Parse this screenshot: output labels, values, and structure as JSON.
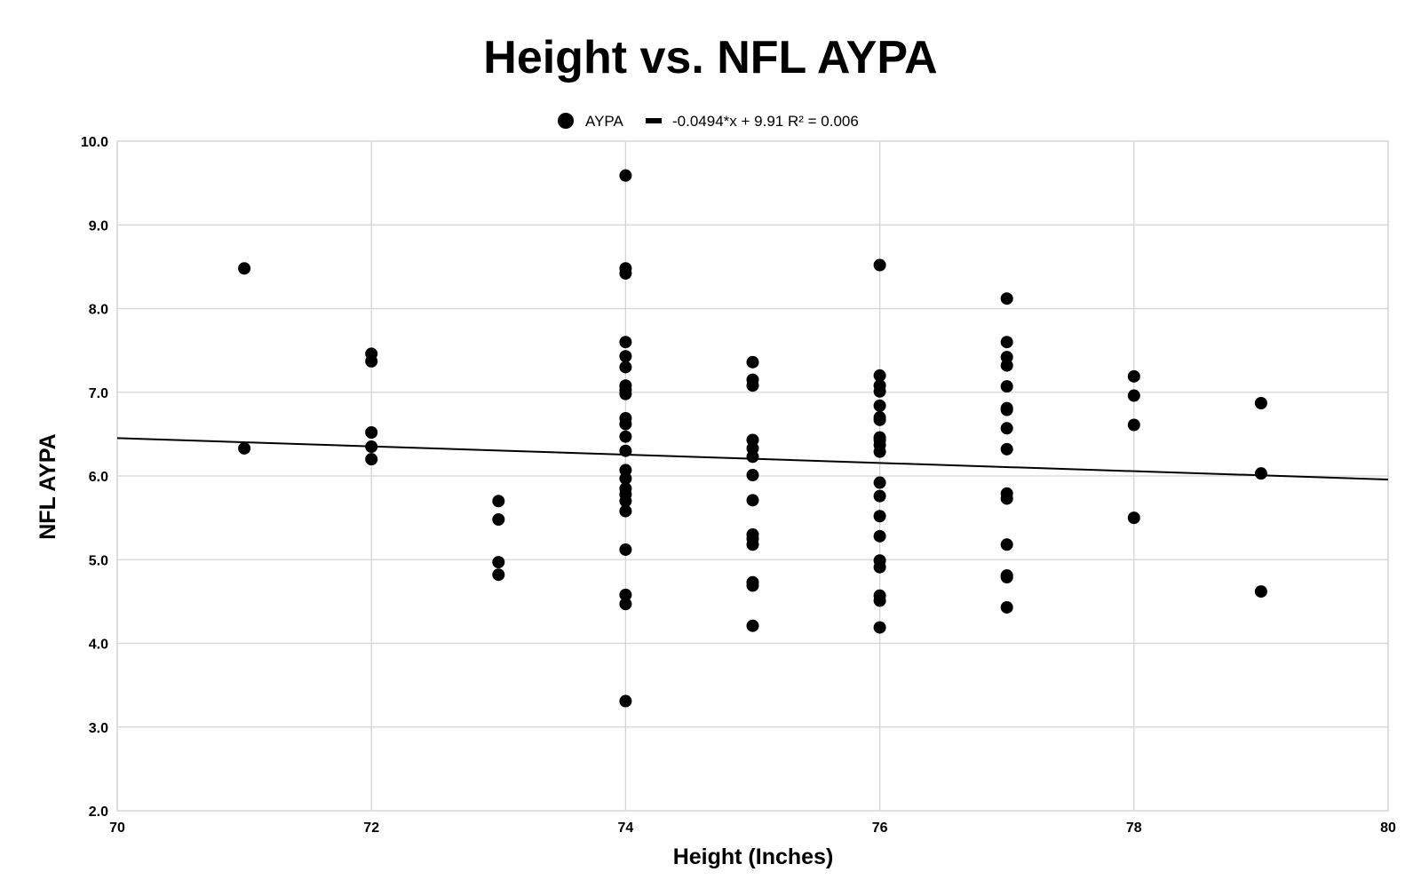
{
  "chart_data": {
    "type": "scatter",
    "title": "Height vs. NFL AYPA",
    "xlabel": "Height (Inches)",
    "ylabel": "NFL AYPA",
    "xlim": [
      70,
      80
    ],
    "ylim": [
      2.0,
      10.0
    ],
    "x_ticks": [
      "70",
      "72",
      "74",
      "76",
      "78",
      "80"
    ],
    "y_ticks": [
      "2.0",
      "3.0",
      "4.0",
      "5.0",
      "6.0",
      "7.0",
      "8.0",
      "9.0",
      "10.0"
    ],
    "grid": true,
    "legend_position": "top-center",
    "colors": {
      "points": "#000000",
      "trendline": "#000000",
      "grid": "#d4d4d4"
    },
    "series": [
      {
        "name": "AYPA",
        "points": [
          [
            71,
            8.48
          ],
          [
            71,
            6.33
          ],
          [
            72,
            7.46
          ],
          [
            72,
            7.37
          ],
          [
            72,
            6.52
          ],
          [
            72,
            6.35
          ],
          [
            72,
            6.2
          ],
          [
            73,
            5.7
          ],
          [
            73,
            5.48
          ],
          [
            73,
            4.97
          ],
          [
            73,
            4.82
          ],
          [
            74,
            9.59
          ],
          [
            74,
            8.48
          ],
          [
            74,
            8.42
          ],
          [
            74,
            7.6
          ],
          [
            74,
            7.43
          ],
          [
            74,
            7.3
          ],
          [
            74,
            7.08
          ],
          [
            74,
            7.03
          ],
          [
            74,
            6.98
          ],
          [
            74,
            6.69
          ],
          [
            74,
            6.62
          ],
          [
            74,
            6.47
          ],
          [
            74,
            6.3
          ],
          [
            74,
            6.07
          ],
          [
            74,
            5.97
          ],
          [
            74,
            5.85
          ],
          [
            74,
            5.78
          ],
          [
            74,
            5.7
          ],
          [
            74,
            5.58
          ],
          [
            74,
            5.12
          ],
          [
            74,
            4.58
          ],
          [
            74,
            4.47
          ],
          [
            74,
            3.31
          ],
          [
            75,
            7.36
          ],
          [
            75,
            7.15
          ],
          [
            75,
            7.08
          ],
          [
            75,
            6.43
          ],
          [
            75,
            6.33
          ],
          [
            75,
            6.23
          ],
          [
            75,
            6.01
          ],
          [
            75,
            5.71
          ],
          [
            75,
            5.3
          ],
          [
            75,
            5.25
          ],
          [
            75,
            5.18
          ],
          [
            75,
            4.73
          ],
          [
            75,
            4.69
          ],
          [
            75,
            4.21
          ],
          [
            76,
            8.52
          ],
          [
            76,
            7.2
          ],
          [
            76,
            7.08
          ],
          [
            76,
            7.01
          ],
          [
            76,
            6.84
          ],
          [
            76,
            6.7
          ],
          [
            76,
            6.67
          ],
          [
            76,
            6.46
          ],
          [
            76,
            6.43
          ],
          [
            76,
            6.37
          ],
          [
            76,
            6.29
          ],
          [
            76,
            5.92
          ],
          [
            76,
            5.76
          ],
          [
            76,
            5.52
          ],
          [
            76,
            5.28
          ],
          [
            76,
            4.99
          ],
          [
            76,
            4.91
          ],
          [
            76,
            4.57
          ],
          [
            76,
            4.51
          ],
          [
            76,
            4.19
          ],
          [
            77,
            8.12
          ],
          [
            77,
            7.6
          ],
          [
            77,
            7.42
          ],
          [
            77,
            7.32
          ],
          [
            77,
            7.07
          ],
          [
            77,
            6.81
          ],
          [
            77,
            6.79
          ],
          [
            77,
            6.57
          ],
          [
            77,
            6.32
          ],
          [
            77,
            5.79
          ],
          [
            77,
            5.73
          ],
          [
            77,
            5.18
          ],
          [
            77,
            4.81
          ],
          [
            77,
            4.79
          ],
          [
            77,
            4.43
          ],
          [
            78,
            7.19
          ],
          [
            78,
            6.96
          ],
          [
            78,
            6.61
          ],
          [
            78,
            5.5
          ],
          [
            79,
            6.87
          ],
          [
            79,
            6.03
          ],
          [
            79,
            4.62
          ]
        ]
      }
    ],
    "trendline": {
      "name": "-0.0494*x + 9.91 R² = 0.006",
      "slope": -0.0494,
      "intercept": 9.91
    }
  }
}
